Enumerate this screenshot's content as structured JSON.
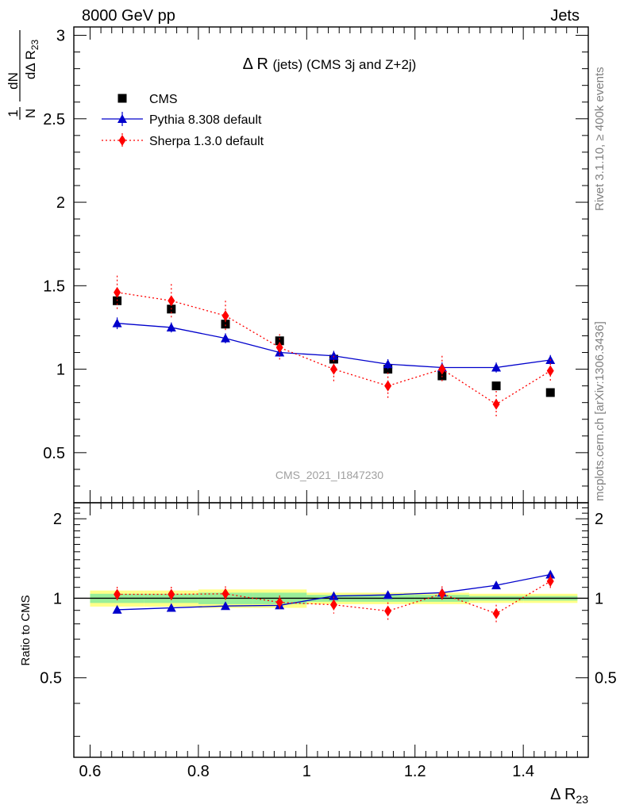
{
  "header": {
    "left": "8000 GeV pp",
    "right": "Jets"
  },
  "side_labels": {
    "rivet": "Rivet 3.1.10, ≥ 400k events",
    "mcplots": "mcplots.cern.ch [arXiv:1306.3436]"
  },
  "chart_data": {
    "type": "scatter",
    "title": "Δ R (jets) (CMS 3j and Z+2j)",
    "watermark": "CMS_2021_I1847230",
    "xlabel": "Δ R23",
    "ylabel": "1/N dN/dΔ R23",
    "ratio_ylabel": "Ratio to CMS",
    "xlim": [
      0.57,
      1.52
    ],
    "ylim": [
      0.2,
      3.05
    ],
    "ratio_ylim": [
      0.25,
      2.3
    ],
    "grid": false,
    "legend_position": "top-left",
    "x_ticks": [
      "0.6",
      "0.8",
      "1",
      "1.2",
      "1.4"
    ],
    "y_ticks": [
      "0.5",
      "1",
      "1.5",
      "2",
      "2.5",
      "3"
    ],
    "ratio_y_ticks": [
      "0.5",
      "1",
      "2"
    ],
    "x": [
      0.65,
      0.75,
      0.85,
      0.95,
      1.05,
      1.15,
      1.25,
      1.35,
      1.45
    ],
    "bin_edges": [
      0.6,
      0.7,
      0.8,
      0.9,
      1.0,
      1.1,
      1.2,
      1.3,
      1.4,
      1.5
    ],
    "series": [
      {
        "name": "CMS",
        "color": "#000000",
        "marker": "square",
        "values": [
          1.41,
          1.36,
          1.27,
          1.17,
          1.06,
          1.0,
          0.96,
          0.9,
          0.86
        ],
        "errors": [
          0.02,
          0.02,
          0.02,
          0.02,
          0.02,
          0.02,
          0.02,
          0.02,
          0.02
        ],
        "ratio": [
          1.0,
          1.0,
          1.0,
          1.0,
          1.0,
          1.0,
          1.0,
          1.0,
          1.0
        ]
      },
      {
        "name": "Pythia 8.308 default",
        "color": "#0000cc",
        "marker": "triangle",
        "line": "solid",
        "values": [
          1.275,
          1.25,
          1.185,
          1.1,
          1.08,
          1.03,
          1.01,
          1.01,
          1.055
        ],
        "errors": [
          0.035,
          0.03,
          0.03,
          0.025,
          0.03,
          0.03,
          0.03,
          0.03,
          0.03
        ],
        "ratio": [
          0.905,
          0.92,
          0.935,
          0.94,
          1.02,
          1.03,
          1.05,
          1.12,
          1.23
        ],
        "ratio_errors": [
          0.02,
          0.02,
          0.02,
          0.02,
          0.03,
          0.03,
          0.03,
          0.03,
          0.04
        ]
      },
      {
        "name": "Sherpa 1.3.0 default",
        "color": "#ff0000",
        "marker": "diamond",
        "line": "dotted",
        "values": [
          1.46,
          1.41,
          1.32,
          1.13,
          1.0,
          0.9,
          1.0,
          0.79,
          0.99
        ],
        "errors": [
          0.1,
          0.1,
          0.09,
          0.08,
          0.08,
          0.08,
          0.08,
          0.08,
          0.07
        ],
        "ratio": [
          1.035,
          1.035,
          1.04,
          0.965,
          0.945,
          0.895,
          1.04,
          0.875,
          1.16
        ],
        "ratio_errors": [
          0.07,
          0.07,
          0.07,
          0.06,
          0.07,
          0.07,
          0.07,
          0.07,
          0.07
        ]
      }
    ],
    "ratio_bands": {
      "yellow": [
        0.07,
        0.07,
        0.08,
        0.08,
        0.05,
        0.05,
        0.05,
        0.04,
        0.04
      ],
      "green": [
        0.04,
        0.04,
        0.05,
        0.05,
        0.03,
        0.03,
        0.03,
        0.02,
        0.02
      ]
    }
  }
}
